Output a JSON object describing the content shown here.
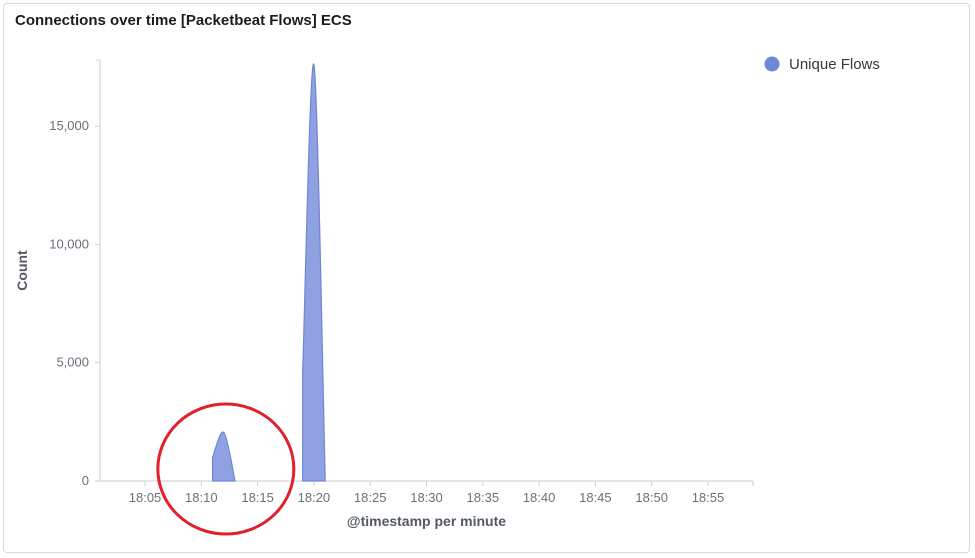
{
  "panel": {
    "title": "Connections over time [Packetbeat Flows] ECS"
  },
  "chart_data": {
    "type": "area",
    "title": "Connections over time [Packetbeat Flows] ECS",
    "xlabel": "@timestamp per minute",
    "ylabel": "Count",
    "x_unit": "minute",
    "xlim": [
      "18:01",
      "18:59"
    ],
    "ylim": [
      0,
      17800
    ],
    "x_ticks": [
      "18:05",
      "18:10",
      "18:15",
      "18:20",
      "18:25",
      "18:30",
      "18:35",
      "18:40",
      "18:45",
      "18:50",
      "18:55"
    ],
    "y_ticks": [
      0,
      5000,
      10000,
      15000
    ],
    "y_tick_labels": [
      "0",
      "5,000",
      "10,000",
      "15,000"
    ],
    "legend_position": "top-right",
    "series": [
      {
        "name": "Unique Flows",
        "color": "#6f87d8",
        "x": [
          "18:11",
          "18:12",
          "18:13",
          "18:18",
          "18:19",
          "18:20",
          "18:21"
        ],
        "y": [
          1000,
          2050,
          0,
          0,
          4600,
          17600,
          150
        ]
      }
    ],
    "annotation": {
      "shape": "circle",
      "color": "#e0202a",
      "around_x": "18:12"
    }
  }
}
